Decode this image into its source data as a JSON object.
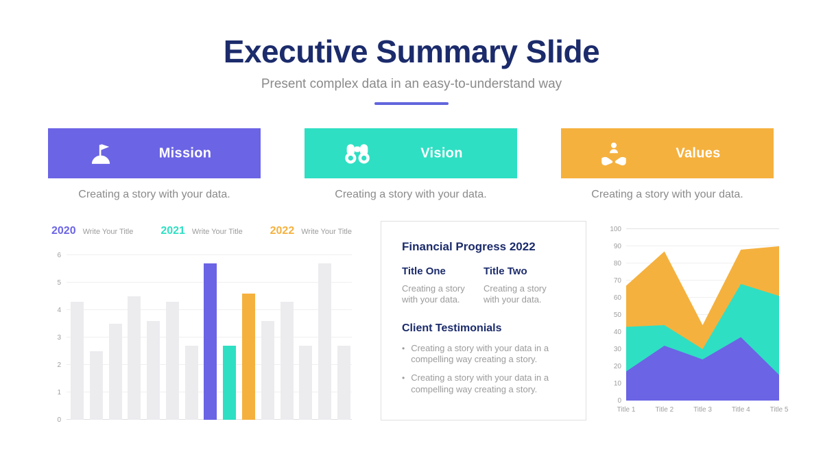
{
  "header": {
    "title": "Executive Summary Slide",
    "subtitle": "Present complex data in an easy-to-understand way"
  },
  "colors": {
    "navy": "#1B2B6B",
    "purple": "#6B64E5",
    "teal": "#2EDFC3",
    "orange": "#F5B13E",
    "bar_gray": "#ECECEF",
    "underline": "#6165DC",
    "text_gray": "#8A8A8A"
  },
  "pillars": [
    {
      "label": "Mission",
      "icon": "flag-on-hill-icon",
      "color": "#6B64E5",
      "caption": "Creating a story with your data."
    },
    {
      "label": "Vision",
      "icon": "binoculars-icon",
      "color": "#2EDFC3",
      "caption": "Creating a story with your data."
    },
    {
      "label": "Values",
      "icon": "hands-holding-person-icon",
      "color": "#F5B13E",
      "caption": "Creating a story with your data."
    }
  ],
  "info_panel": {
    "heading": "Financial Progress 2022",
    "columns": [
      {
        "title": "Title One",
        "body": "Creating a story with your data."
      },
      {
        "title": "Title Two",
        "body": "Creating a story with your data."
      }
    ],
    "testimonials_heading": "Client Testimonials",
    "bullets": [
      "Creating a story with your data in a compelling way creating a story.",
      "Creating a story with your data in a compelling way creating a story."
    ]
  },
  "chart_data": [
    {
      "type": "bar",
      "title": "",
      "legend": [
        {
          "year": "2020",
          "label": "Write Your Title",
          "color": "#6B64E5"
        },
        {
          "year": "2021",
          "label": "Write Your Title",
          "color": "#2EDFC3"
        },
        {
          "year": "2022",
          "label": "Write Your Title",
          "color": "#F5B13E"
        }
      ],
      "ylim": [
        0,
        6
      ],
      "yticks": [
        0,
        1,
        2,
        3,
        4,
        5,
        6
      ],
      "grid": true,
      "default_bar_color": "#ECECEF",
      "bars": [
        {
          "value": 4.3,
          "series": null
        },
        {
          "value": 2.5,
          "series": null
        },
        {
          "value": 3.5,
          "series": null
        },
        {
          "value": 4.5,
          "series": null
        },
        {
          "value": 3.6,
          "series": null
        },
        {
          "value": 4.3,
          "series": null
        },
        {
          "value": 2.7,
          "series": null
        },
        {
          "value": 5.7,
          "series": "2020"
        },
        {
          "value": 2.7,
          "series": "2021"
        },
        {
          "value": 4.6,
          "series": "2022"
        },
        {
          "value": 3.6,
          "series": null
        },
        {
          "value": 4.3,
          "series": null
        },
        {
          "value": 2.7,
          "series": null
        },
        {
          "value": 5.7,
          "series": null
        },
        {
          "value": 2.7,
          "series": null
        }
      ]
    },
    {
      "type": "area",
      "title": "",
      "categories": [
        "Title 1",
        "Title 2",
        "Title 3",
        "Title 4",
        "Title 5"
      ],
      "ylim": [
        0,
        100
      ],
      "yticks": [
        0,
        10,
        20,
        30,
        40,
        50,
        60,
        70,
        80,
        90,
        100
      ],
      "grid": true,
      "legend_position": "none",
      "series": [
        {
          "name": "orange",
          "color": "#F5B13E",
          "values": [
            67,
            87,
            44,
            88,
            90
          ]
        },
        {
          "name": "teal",
          "color": "#2EDFC3",
          "values": [
            43,
            44,
            30,
            68,
            61
          ]
        },
        {
          "name": "purple",
          "color": "#6B64E5",
          "values": [
            17,
            32,
            24,
            37,
            15
          ]
        }
      ]
    }
  ]
}
